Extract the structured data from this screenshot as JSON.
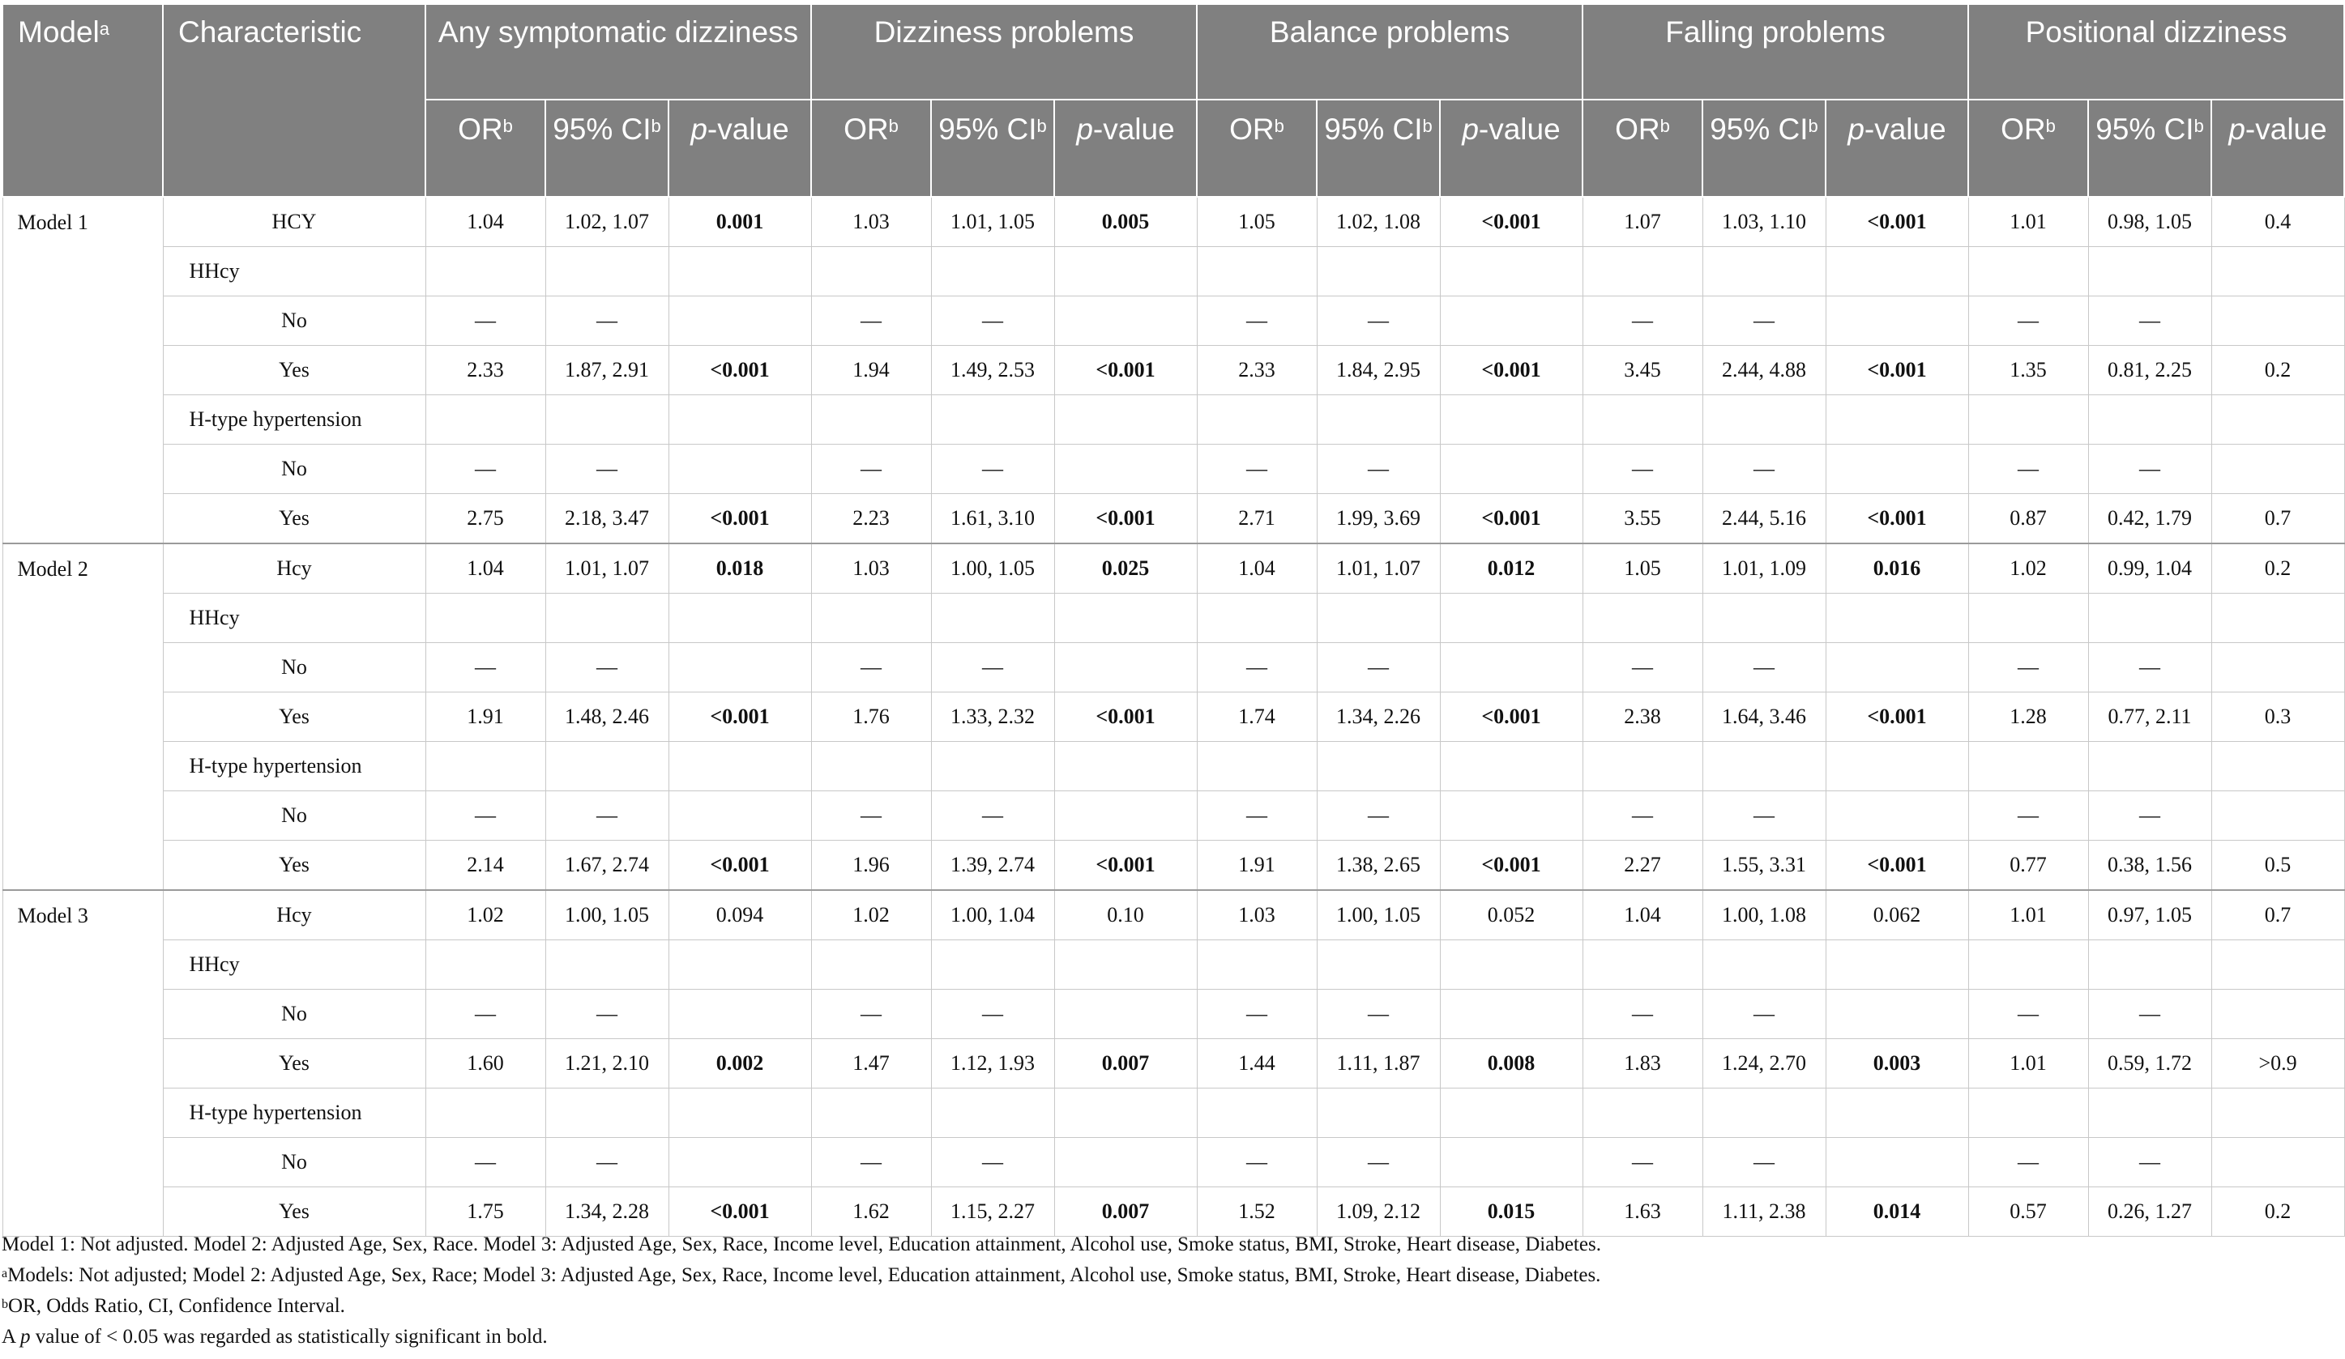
{
  "header": {
    "model_label": "Model",
    "model_sup": "a",
    "characteristic_label": "Characteristic",
    "groups": [
      "Any symptomatic dizziness",
      "Dizziness problems",
      "Balance problems",
      "Falling problems",
      "Positional dizziness"
    ],
    "sub": {
      "or_label": "OR",
      "or_sup": "b",
      "ci_label": "95% CI",
      "ci_sup": "b",
      "p_label_italic": "p",
      "p_label_rest": "-value"
    }
  },
  "blocks": [
    {
      "model": "Model 1",
      "rows": [
        {
          "char": "HCY",
          "type": "level",
          "cells": [
            "1.04",
            "1.02, 1.07",
            "0.001",
            "1.03",
            "1.01, 1.05",
            "0.005",
            "1.05",
            "1.02, 1.08",
            "<0.001",
            "1.07",
            "1.03, 1.10",
            "<0.001",
            "1.01",
            "0.98, 1.05",
            "0.4"
          ],
          "bold": [
            2,
            5,
            8,
            11
          ]
        },
        {
          "char": "HHcy",
          "type": "group",
          "cells": [
            "",
            "",
            "",
            "",
            "",
            "",
            "",
            "",
            "",
            "",
            "",
            "",
            "",
            "",
            ""
          ],
          "bold": []
        },
        {
          "char": "No",
          "type": "level",
          "cells": [
            "—",
            "—",
            "",
            "—",
            "—",
            "",
            "—",
            "—",
            "",
            "—",
            "—",
            "",
            "—",
            "—",
            ""
          ],
          "bold": []
        },
        {
          "char": "Yes",
          "type": "level",
          "cells": [
            "2.33",
            "1.87, 2.91",
            "<0.001",
            "1.94",
            "1.49, 2.53",
            "<0.001",
            "2.33",
            "1.84, 2.95",
            "<0.001",
            "3.45",
            "2.44, 4.88",
            "<0.001",
            "1.35",
            "0.81, 2.25",
            "0.2"
          ],
          "bold": [
            2,
            5,
            8,
            11
          ]
        },
        {
          "char": "H-type hypertension",
          "type": "group",
          "cells": [
            "",
            "",
            "",
            "",
            "",
            "",
            "",
            "",
            "",
            "",
            "",
            "",
            "",
            "",
            ""
          ],
          "bold": []
        },
        {
          "char": "No",
          "type": "level",
          "cells": [
            "—",
            "—",
            "",
            "—",
            "—",
            "",
            "—",
            "—",
            "",
            "—",
            "—",
            "",
            "—",
            "—",
            ""
          ],
          "bold": []
        },
        {
          "char": "Yes",
          "type": "level",
          "cells": [
            "2.75",
            "2.18, 3.47",
            "<0.001",
            "2.23",
            "1.61, 3.10",
            "<0.001",
            "2.71",
            "1.99, 3.69",
            "<0.001",
            "3.55",
            "2.44, 5.16",
            "<0.001",
            "0.87",
            "0.42, 1.79",
            "0.7"
          ],
          "bold": [
            2,
            5,
            8,
            11
          ]
        }
      ]
    },
    {
      "model": "Model 2",
      "rows": [
        {
          "char": "Hcy",
          "type": "level",
          "cells": [
            "1.04",
            "1.01, 1.07",
            "0.018",
            "1.03",
            "1.00, 1.05",
            "0.025",
            "1.04",
            "1.01, 1.07",
            "0.012",
            "1.05",
            "1.01, 1.09",
            "0.016",
            "1.02",
            "0.99, 1.04",
            "0.2"
          ],
          "bold": [
            2,
            5,
            8,
            11
          ]
        },
        {
          "char": "HHcy",
          "type": "group",
          "cells": [
            "",
            "",
            "",
            "",
            "",
            "",
            "",
            "",
            "",
            "",
            "",
            "",
            "",
            "",
            ""
          ],
          "bold": []
        },
        {
          "char": "No",
          "type": "level",
          "cells": [
            "—",
            "—",
            "",
            "—",
            "—",
            "",
            "—",
            "—",
            "",
            "—",
            "—",
            "",
            "—",
            "—",
            ""
          ],
          "bold": []
        },
        {
          "char": "Yes",
          "type": "level",
          "cells": [
            "1.91",
            "1.48, 2.46",
            "<0.001",
            "1.76",
            "1.33, 2.32",
            "<0.001",
            "1.74",
            "1.34, 2.26",
            "<0.001",
            "2.38",
            "1.64, 3.46",
            "<0.001",
            "1.28",
            "0.77, 2.11",
            "0.3"
          ],
          "bold": [
            2,
            5,
            8,
            11
          ]
        },
        {
          "char": "H-type hypertension",
          "type": "group",
          "cells": [
            "",
            "",
            "",
            "",
            "",
            "",
            "",
            "",
            "",
            "",
            "",
            "",
            "",
            "",
            ""
          ],
          "bold": []
        },
        {
          "char": "No",
          "type": "level",
          "cells": [
            "—",
            "—",
            "",
            "—",
            "—",
            "",
            "—",
            "—",
            "",
            "—",
            "—",
            "",
            "—",
            "—",
            ""
          ],
          "bold": []
        },
        {
          "char": "Yes",
          "type": "level",
          "cells": [
            "2.14",
            "1.67, 2.74",
            "<0.001",
            "1.96",
            "1.39, 2.74",
            "<0.001",
            "1.91",
            "1.38, 2.65",
            "<0.001",
            "2.27",
            "1.55, 3.31",
            "<0.001",
            "0.77",
            "0.38, 1.56",
            "0.5"
          ],
          "bold": [
            2,
            5,
            8,
            11
          ]
        }
      ]
    },
    {
      "model": "Model 3",
      "rows": [
        {
          "char": "Hcy",
          "type": "level",
          "cells": [
            "1.02",
            "1.00, 1.05",
            "0.094",
            "1.02",
            "1.00, 1.04",
            "0.10",
            "1.03",
            "1.00, 1.05",
            "0.052",
            "1.04",
            "1.00, 1.08",
            "0.062",
            "1.01",
            "0.97, 1.05",
            "0.7"
          ],
          "bold": []
        },
        {
          "char": "HHcy",
          "type": "group",
          "cells": [
            "",
            "",
            "",
            "",
            "",
            "",
            "",
            "",
            "",
            "",
            "",
            "",
            "",
            "",
            ""
          ],
          "bold": []
        },
        {
          "char": "No",
          "type": "level",
          "cells": [
            "—",
            "—",
            "",
            "—",
            "—",
            "",
            "—",
            "—",
            "",
            "—",
            "—",
            "",
            "—",
            "—",
            ""
          ],
          "bold": []
        },
        {
          "char": "Yes",
          "type": "level",
          "cells": [
            "1.60",
            "1.21, 2.10",
            "0.002",
            "1.47",
            "1.12, 1.93",
            "0.007",
            "1.44",
            "1.11, 1.87",
            "0.008",
            "1.83",
            "1.24, 2.70",
            "0.003",
            "1.01",
            "0.59, 1.72",
            ">0.9"
          ],
          "bold": [
            2,
            5,
            8,
            11
          ]
        },
        {
          "char": "H-type hypertension",
          "type": "group",
          "cells": [
            "",
            "",
            "",
            "",
            "",
            "",
            "",
            "",
            "",
            "",
            "",
            "",
            "",
            "",
            ""
          ],
          "bold": []
        },
        {
          "char": "No",
          "type": "level",
          "cells": [
            "—",
            "—",
            "",
            "—",
            "—",
            "",
            "—",
            "—",
            "",
            "—",
            "—",
            "",
            "—",
            "—",
            ""
          ],
          "bold": []
        },
        {
          "char": "Yes",
          "type": "level",
          "cells": [
            "1.75",
            "1.34, 2.28",
            "<0.001",
            "1.62",
            "1.15, 2.27",
            "0.007",
            "1.52",
            "1.09, 2.12",
            "0.015",
            "1.63",
            "1.11, 2.38",
            "0.014",
            "0.57",
            "0.26, 1.27",
            "0.2"
          ],
          "bold": [
            2,
            5,
            8,
            11
          ]
        }
      ]
    }
  ],
  "notes": {
    "line1": "Model 1: Not adjusted. Model 2: Adjusted Age, Sex, Race. Model 3: Adjusted Age, Sex, Race, Income level, Education attainment, Alcohol use, Smoke status, BMI, Stroke, Heart disease, Diabetes.",
    "line2_sup": "a",
    "line2": "Models: Not adjusted; Model 2: Adjusted Age, Sex, Race; Model 3: Adjusted Age, Sex, Race, Income level, Education attainment, Alcohol use, Smoke status, BMI, Stroke, Heart disease, Diabetes.",
    "line3_sup": "b",
    "line3": "OR, Odds Ratio, CI, Confidence Interval.",
    "line4_pre": "A ",
    "line4_italic": "p",
    "line4_post": " value of < 0.05 was regarded as statistically significant in bold."
  }
}
